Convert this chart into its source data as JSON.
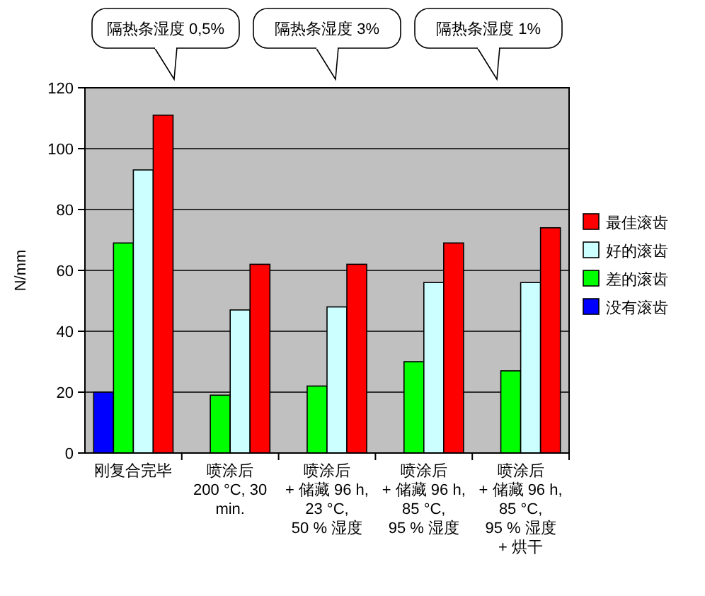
{
  "chart_data": {
    "type": "bar",
    "categories": [
      "刚复合完毕",
      "喷涂后\n200 °C, 30\nmin.",
      "喷涂后\n+ 储藏 96 h,\n23 °C,\n50 % 湿度",
      "喷涂后\n+ 储藏 96 h,\n85 °C,\n95 % 湿度",
      "喷涂后\n+ 储藏 96 h,\n85 °C,\n95 % 湿度\n+ 烘干"
    ],
    "series": [
      {
        "name": "没有滚齿",
        "color": "#0000ff",
        "values": [
          20,
          0,
          0,
          0,
          0
        ]
      },
      {
        "name": "差的滚齿",
        "color": "#00ff00",
        "values": [
          69,
          19,
          22,
          30,
          27
        ]
      },
      {
        "name": "好的滚齿",
        "color": "#ccffff",
        "values": [
          93,
          47,
          48,
          56,
          56
        ]
      },
      {
        "name": "最佳滚齿",
        "color": "#ff0000",
        "values": [
          111,
          62,
          62,
          69,
          74
        ]
      }
    ],
    "ylabel": "N/mm",
    "ylim": [
      0,
      120
    ],
    "yticks": [
      0,
      20,
      40,
      60,
      80,
      100,
      120
    ],
    "grid": "y",
    "legend": "right",
    "annotations": [
      "隔热条湿度 0,5%",
      "隔热条湿度 3%",
      "隔热条湿度 1%"
    ]
  }
}
